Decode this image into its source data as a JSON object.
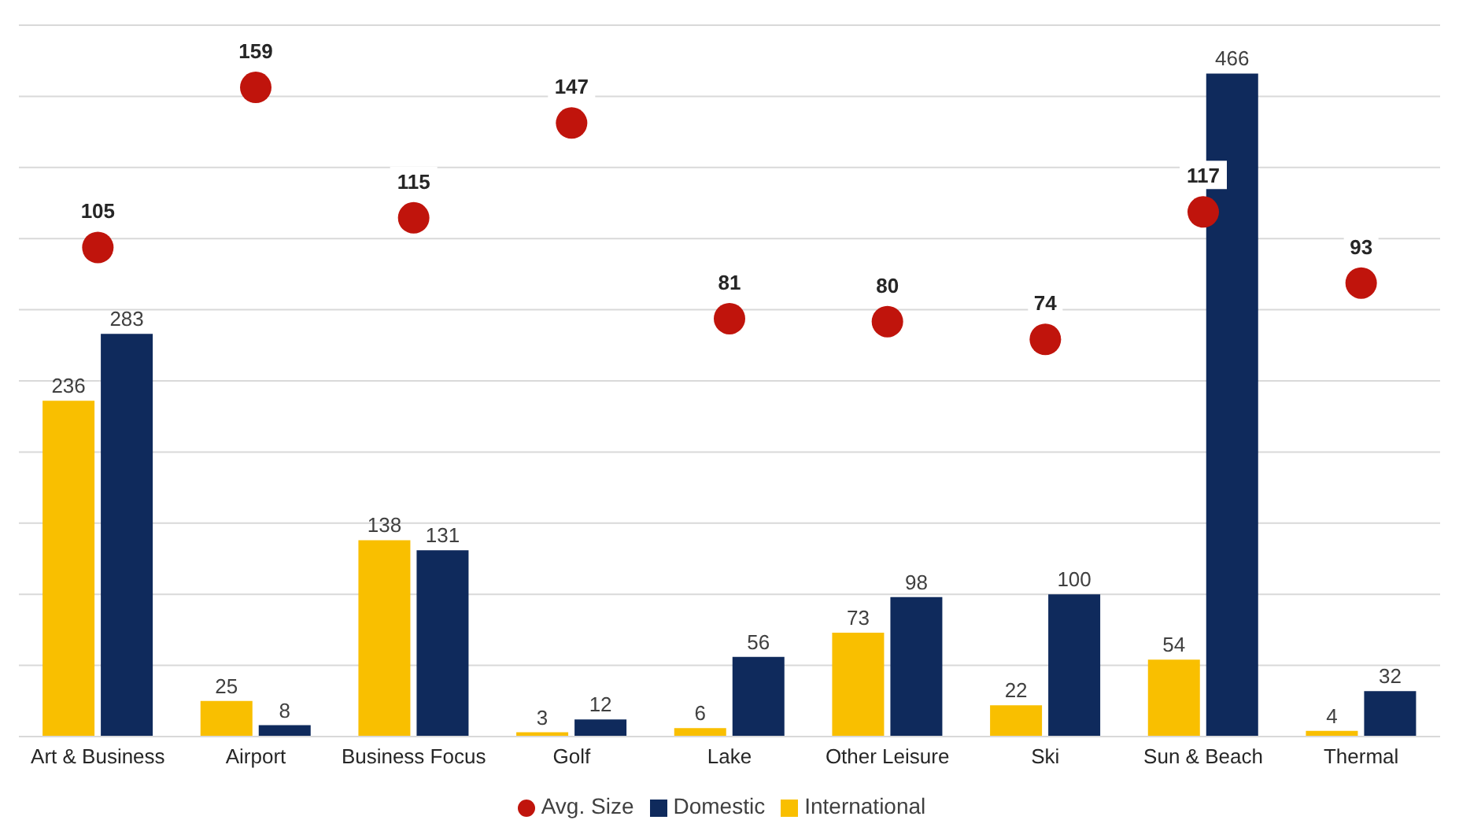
{
  "chart_data": {
    "type": "bar",
    "categories": [
      "Art & Business",
      "Airport",
      "Business Focus",
      "Golf",
      "Lake",
      "Other Leisure",
      "Ski",
      "Sun & Beach",
      "Thermal"
    ],
    "series": [
      {
        "name": "International",
        "color": "#f9bf00",
        "values": [
          236,
          25,
          138,
          3,
          6,
          73,
          22,
          54,
          4
        ]
      },
      {
        "name": "Domestic",
        "color": "#0f2a5c",
        "values": [
          283,
          8,
          131,
          12,
          56,
          98,
          100,
          466,
          32
        ]
      },
      {
        "name": "Avg. Size",
        "type": "scatter",
        "axis": "y2",
        "color": "#c0140c",
        "values": [
          105,
          159,
          115,
          147,
          81,
          80,
          74,
          117,
          93
        ]
      }
    ],
    "ylim": [
      0,
      500
    ],
    "yticks": [
      {
        "value": 0,
        "label": null
      },
      {
        "value": 50,
        "label": null
      },
      {
        "value": 100,
        "label": null
      },
      {
        "value": 150,
        "label": null
      },
      {
        "value": 200,
        "label": null
      },
      {
        "value": 250,
        "label": null
      },
      {
        "value": 300,
        "label": null
      },
      {
        "value": 350,
        "label": null
      },
      {
        "value": 400,
        "label": null
      },
      {
        "value": 450,
        "label": null
      },
      {
        "value": 500,
        "label": null
      }
    ],
    "y2lim": [
      -60,
      180
    ],
    "grid": "y",
    "legend": "bottom",
    "tick_labels": "x",
    "data_labels": true,
    "marker": "circle"
  }
}
